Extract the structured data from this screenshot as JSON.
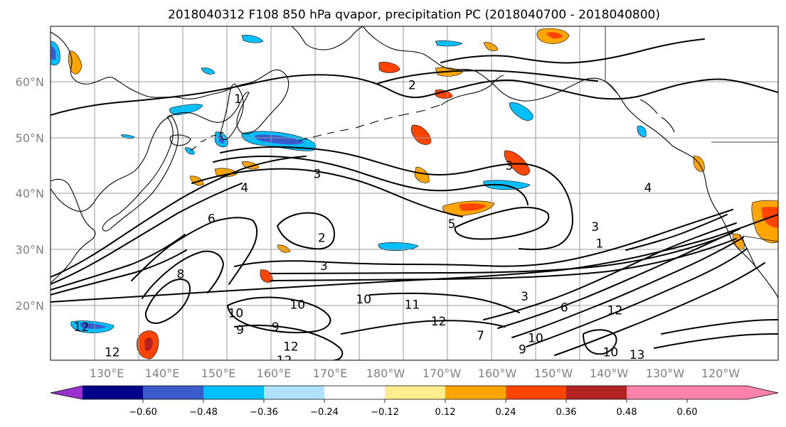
{
  "title": "2018040312 F108 850 hPa qvapor, precipitation PC (2018040700 - 2018040800)",
  "map": {
    "lon_range": [
      120,
      285
    ],
    "lat_range": [
      10,
      70
    ],
    "lat_ticks": [
      {
        "value": 20,
        "label": "20°N"
      },
      {
        "value": 30,
        "label": "30°N"
      },
      {
        "value": 40,
        "label": "40°N"
      },
      {
        "value": 50,
        "label": "50°N"
      },
      {
        "value": 60,
        "label": "60°N"
      }
    ],
    "lon_ticks": [
      {
        "value": 130,
        "label": "130°E"
      },
      {
        "value": 140,
        "label": "140°E"
      },
      {
        "value": 150,
        "label": "150°E"
      },
      {
        "value": 160,
        "label": "160°E"
      },
      {
        "value": 170,
        "label": "170°E"
      },
      {
        "value": 180,
        "label": "180°W"
      },
      {
        "value": 190,
        "label": "170°W"
      },
      {
        "value": 200,
        "label": "160°W"
      },
      {
        "value": 210,
        "label": "150°W"
      },
      {
        "value": 220,
        "label": "140°W"
      },
      {
        "value": 230,
        "label": "130°W"
      },
      {
        "value": 240,
        "label": "120°W"
      }
    ],
    "grid": true
  },
  "colorbar": {
    "colors": [
      "#9932cc",
      "#00008b",
      "#3a5bcc",
      "#00bfff",
      "#b0e2ff",
      "#ffffff",
      "#ffec8b",
      "#ffa500",
      "#ff4500",
      "#b22222",
      "#ff82ab"
    ],
    "labels": [
      "−0.60",
      "−0.48",
      "−0.36",
      "−0.24",
      "−0.12",
      "0.12",
      "0.24",
      "0.36",
      "0.48",
      "0.60"
    ]
  },
  "contour_labels": [
    {
      "text": "1",
      "lon": 162.5,
      "lat": 57
    },
    {
      "text": "2",
      "lon": 202,
      "lat": 59.5
    },
    {
      "text": "3",
      "lon": 180.5,
      "lat": 43.5
    },
    {
      "text": "3",
      "lon": 224,
      "lat": 45
    },
    {
      "text": "3",
      "lon": 243.5,
      "lat": 34
    },
    {
      "text": "4",
      "lon": 164,
      "lat": 41
    },
    {
      "text": "5",
      "lon": 211,
      "lat": 34.5
    },
    {
      "text": "2",
      "lon": 181.5,
      "lat": 32
    },
    {
      "text": "3",
      "lon": 182,
      "lat": 27
    },
    {
      "text": "1",
      "lon": 244.5,
      "lat": 31
    },
    {
      "text": "6",
      "lon": 156.5,
      "lat": 35.5
    },
    {
      "text": "8",
      "lon": 149.5,
      "lat": 25.5
    },
    {
      "text": "10",
      "lon": 162,
      "lat": 18.5
    },
    {
      "text": "10",
      "lon": 176,
      "lat": 20
    },
    {
      "text": "9",
      "lon": 163,
      "lat": 15.5
    },
    {
      "text": "9",
      "lon": 171,
      "lat": 16
    },
    {
      "text": "12",
      "lon": 127,
      "lat": 16
    },
    {
      "text": "12",
      "lon": 134,
      "lat": 11.5
    },
    {
      "text": "12",
      "lon": 174.5,
      "lat": 12.5
    },
    {
      "text": "12",
      "lon": 173,
      "lat": 10
    },
    {
      "text": "10",
      "lon": 191,
      "lat": 21
    },
    {
      "text": "11",
      "lon": 202,
      "lat": 20
    },
    {
      "text": "12",
      "lon": 208,
      "lat": 17
    },
    {
      "text": "7",
      "lon": 217.5,
      "lat": 14.5
    },
    {
      "text": "10",
      "lon": 230,
      "lat": 14
    },
    {
      "text": "9",
      "lon": 227,
      "lat": 12
    },
    {
      "text": "10",
      "lon": 247,
      "lat": 11.5
    },
    {
      "text": "13",
      "lon": 253,
      "lat": 11
    },
    {
      "text": "12",
      "lon": 248,
      "lat": 19
    },
    {
      "text": "3",
      "lon": 227.5,
      "lat": 21.5
    },
    {
      "text": "6",
      "lon": 236.5,
      "lat": 19.5
    },
    {
      "text": "4",
      "lon": 255.5,
      "lat": 41
    }
  ]
}
